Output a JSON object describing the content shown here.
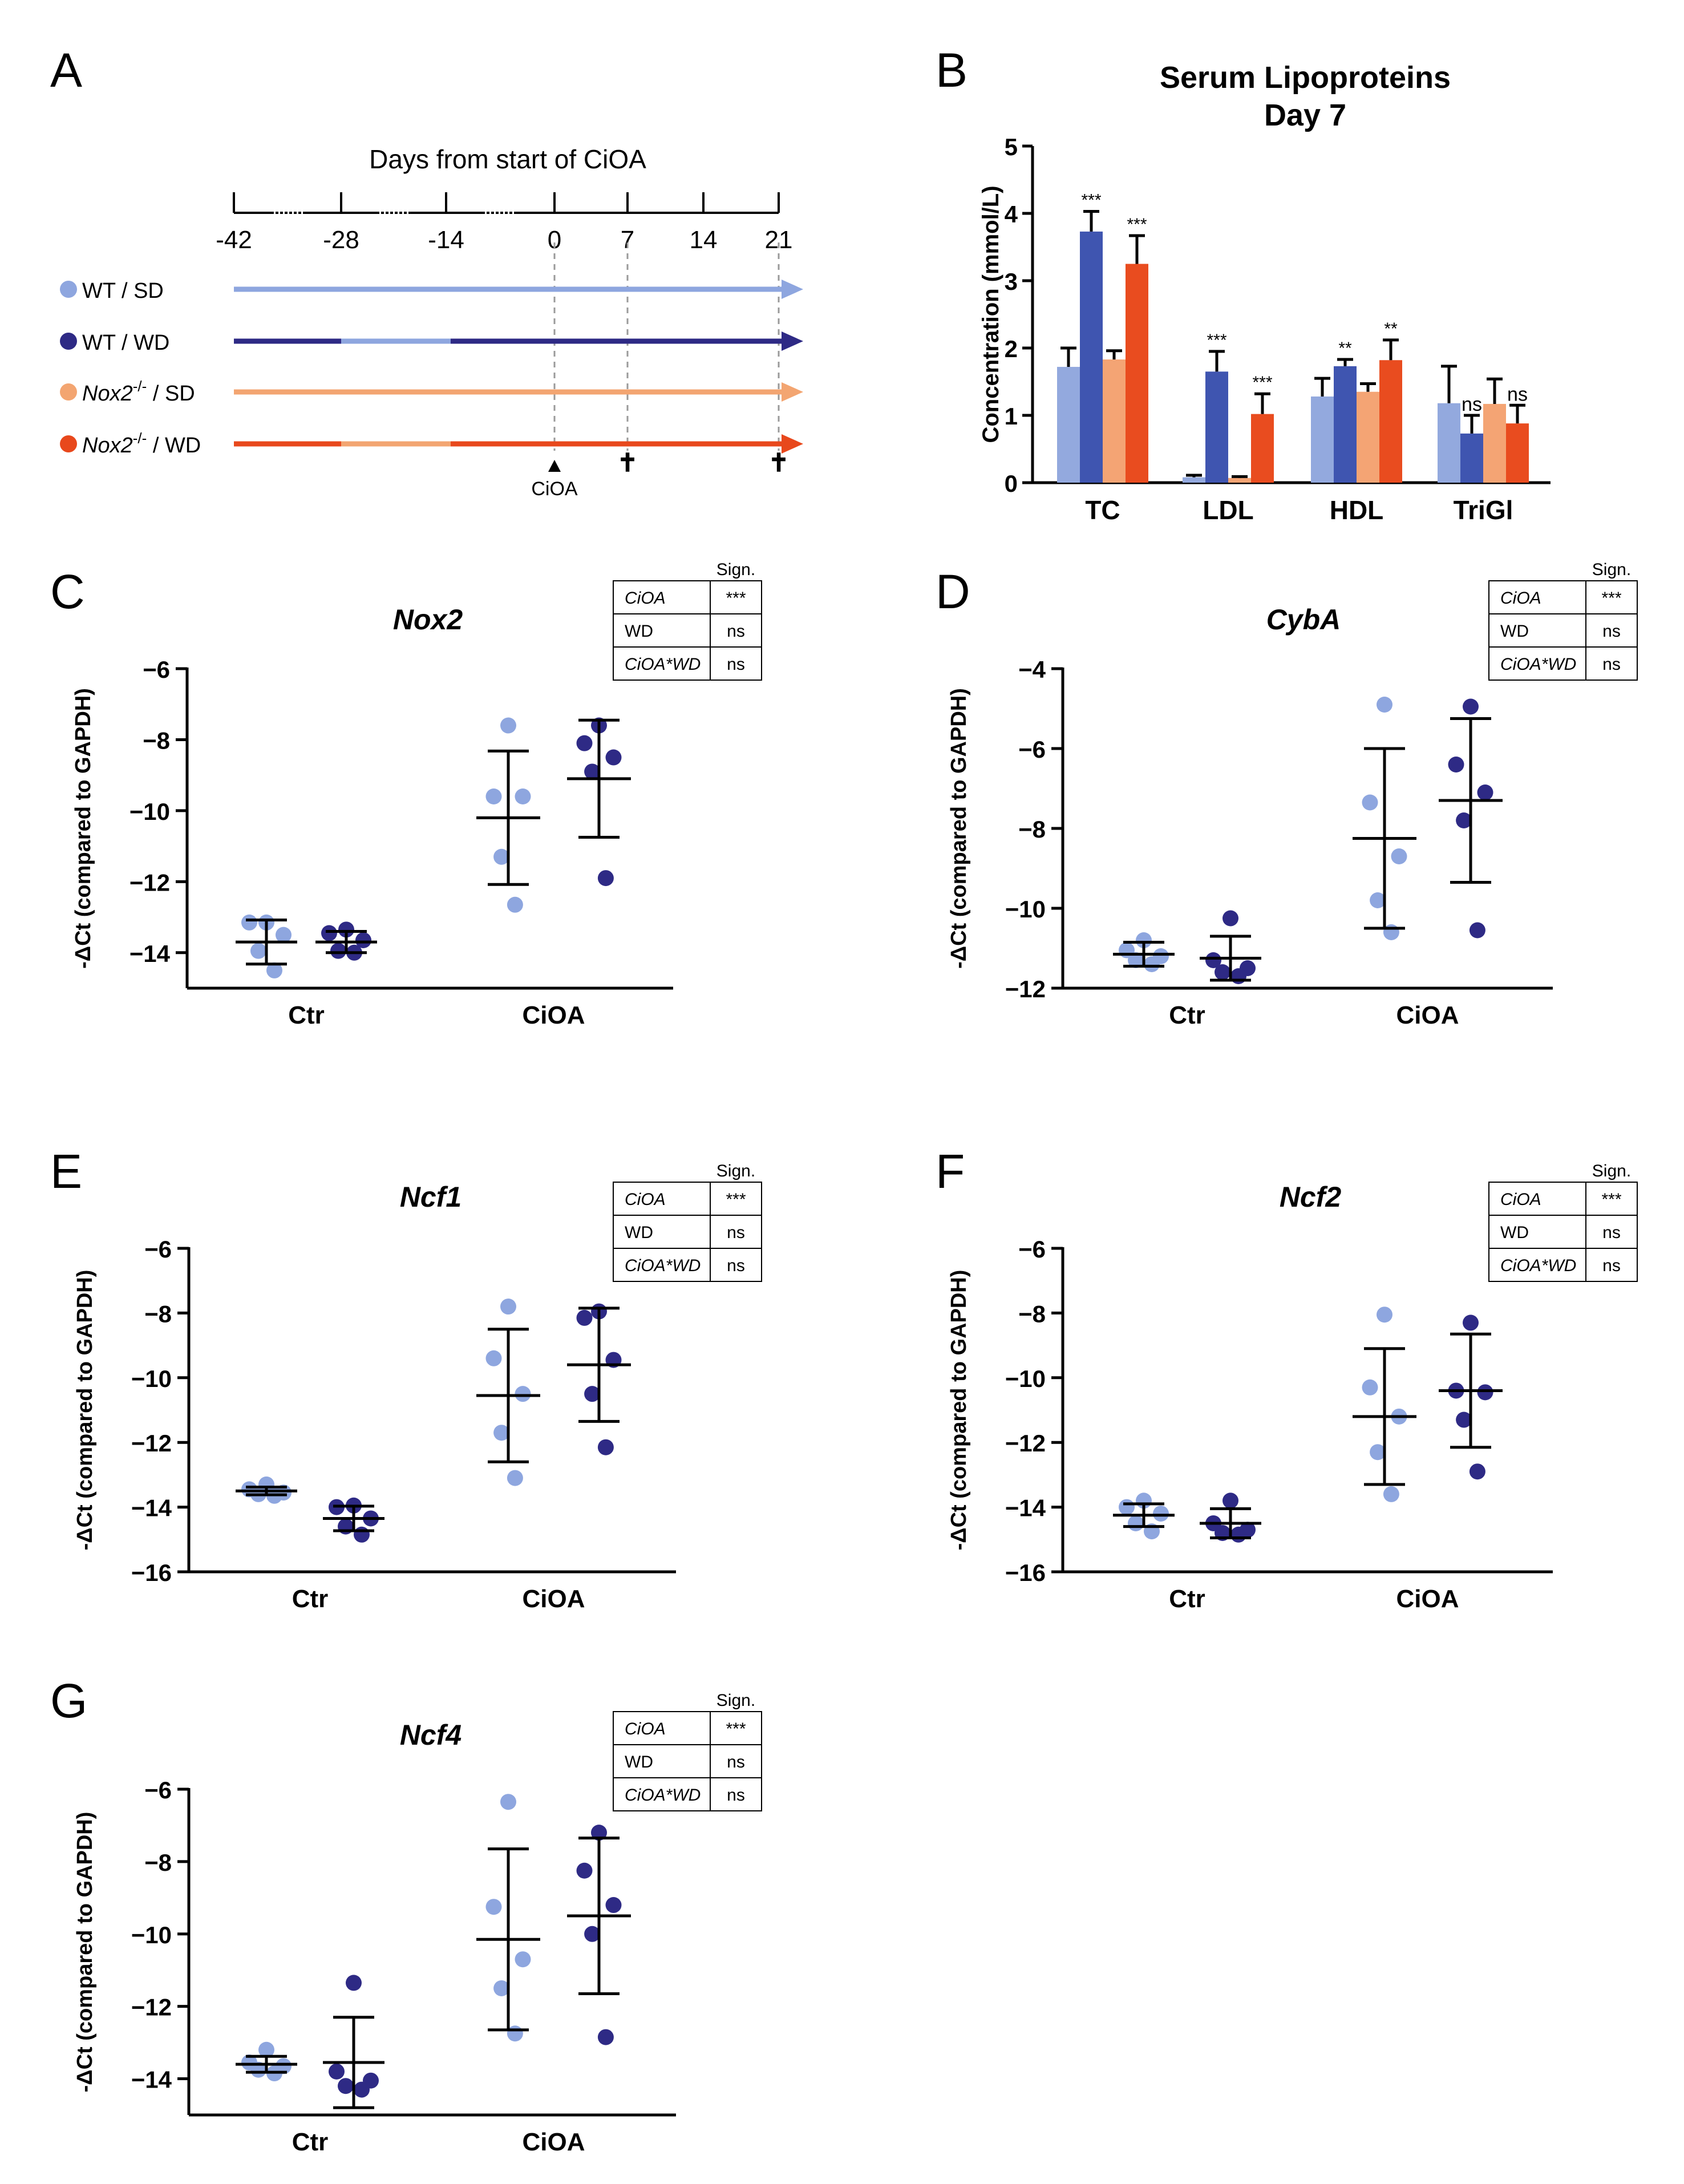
{
  "colors": {
    "wt_sd": "#8ea6df",
    "wt_wd": "#2e2a85",
    "nox_sd": "#f3a571",
    "nox_wd": "#e8481c",
    "bar_wt_sd": "#93a9de",
    "bar_wt_wd": "#3f55b0",
    "bar_nox_sd": "#f4a474",
    "bar_nox_wd": "#e94c1f",
    "axis": "#000000"
  },
  "panel_a": {
    "label": "A",
    "title": "Days from start of CiOA",
    "ticks": [
      "-42",
      "-28",
      "-14",
      "0",
      "7",
      "14",
      "21"
    ],
    "groups": [
      {
        "label": "WT / SD",
        "genotype": "",
        "sup": "",
        "diet": ""
      },
      {
        "label": "WT / WD",
        "genotype": "",
        "sup": "",
        "diet": ""
      },
      {
        "label": "",
        "genotype": "Nox2",
        "sup": "-/-",
        "diet": " / SD"
      },
      {
        "label": "",
        "genotype": "Nox2",
        "sup": "-/-",
        "diet": " / WD"
      }
    ],
    "ciao_marker": "CiOA",
    "endpoint_marker": "✝"
  },
  "chart_data": [
    {
      "panel": "B",
      "type": "bar",
      "title": "Serum Lipoproteins",
      "subtitle": "Day 7",
      "xlabel": "",
      "ylabel": "Concentration (mmol/L)",
      "ylim": [
        0,
        5
      ],
      "yticks": [
        "0",
        "1",
        "2",
        "3",
        "4",
        "5"
      ],
      "categories": [
        "TC",
        "LDL",
        "HDL",
        "TriGl"
      ],
      "series": [
        {
          "name": "WT / SD",
          "values": [
            1.72,
            0.08,
            1.28,
            1.18
          ],
          "err": [
            0.28,
            0.03,
            0.27,
            0.55
          ],
          "sig": [
            "",
            "",
            "",
            ""
          ]
        },
        {
          "name": "WT / WD",
          "values": [
            3.73,
            1.65,
            1.73,
            0.73
          ],
          "err": [
            0.3,
            0.3,
            0.1,
            0.27
          ],
          "sig": [
            "***",
            "***",
            "**",
            "ns"
          ]
        },
        {
          "name": "Nox2-/- / SD",
          "values": [
            1.83,
            0.07,
            1.35,
            1.17
          ],
          "err": [
            0.13,
            0.02,
            0.12,
            0.37
          ],
          "sig": [
            "",
            "",
            "",
            ""
          ]
        },
        {
          "name": "Nox2-/- / WD",
          "values": [
            3.25,
            1.02,
            1.82,
            0.88
          ],
          "err": [
            0.42,
            0.3,
            0.3,
            0.27
          ],
          "sig": [
            "***",
            "***",
            "**",
            "ns"
          ]
        }
      ]
    },
    {
      "panel": "C",
      "type": "scatter",
      "title": "Nox2",
      "ylabel": "-ΔCt (compared to GAPDH)",
      "ylim": [
        -15,
        -6
      ],
      "yticks": [
        "-6",
        "-8",
        "-10",
        "-12",
        "-14"
      ],
      "categories": [
        "Ctr",
        "CiOA"
      ],
      "series": [
        {
          "name": "Ctr WT",
          "points": [
            -13.15,
            -13.15,
            -13.5,
            -13.95,
            -14.5
          ],
          "mean": -13.7,
          "sd": 0.62
        },
        {
          "name": "Ctr Nox2-/-",
          "points": [
            -13.35,
            -13.45,
            -13.65,
            -13.95,
            -14.0
          ],
          "mean": -13.7,
          "sd": 0.3
        },
        {
          "name": "CiOA WT",
          "points": [
            -7.6,
            -9.6,
            -9.6,
            -11.3,
            -12.65
          ],
          "mean": -10.2,
          "sd": 1.88
        },
        {
          "name": "CiOA Nox2-/-",
          "points": [
            -7.6,
            -8.1,
            -8.5,
            -8.9,
            -11.9
          ],
          "mean": -9.1,
          "sd": 1.65
        }
      ],
      "sign_table": {
        "header": "Sign.",
        "rows": [
          [
            "CiOA",
            "***"
          ],
          [
            "WD",
            "ns"
          ],
          [
            "CiOA*WD",
            "ns"
          ]
        ]
      }
    },
    {
      "panel": "D",
      "type": "scatter",
      "title": "CybA",
      "ylabel": "-ΔCt (compared to GAPDH)",
      "ylim": [
        -12,
        -4
      ],
      "yticks": [
        "-4",
        "-6",
        "-8",
        "-10",
        "-12"
      ],
      "categories": [
        "Ctr",
        "CiOA"
      ],
      "series": [
        {
          "name": "Ctr WT",
          "points": [
            -10.8,
            -11.05,
            -11.2,
            -11.3,
            -11.4
          ],
          "mean": -11.15,
          "sd": 0.3
        },
        {
          "name": "Ctr Nox2-/-",
          "points": [
            -10.25,
            -11.3,
            -11.5,
            -11.6,
            -11.7
          ],
          "mean": -11.25,
          "sd": 0.55
        },
        {
          "name": "CiOA WT",
          "points": [
            -4.9,
            -7.35,
            -8.7,
            -9.8,
            -10.6
          ],
          "mean": -8.25,
          "sd": 2.25
        },
        {
          "name": "CiOA Nox2-/-",
          "points": [
            -4.95,
            -6.4,
            -7.1,
            -7.8,
            -10.55
          ],
          "mean": -7.3,
          "sd": 2.05
        }
      ],
      "sign_table": {
        "header": "Sign.",
        "rows": [
          [
            "CiOA",
            "***"
          ],
          [
            "WD",
            "ns"
          ],
          [
            "CiOA*WD",
            "ns"
          ]
        ]
      }
    },
    {
      "panel": "E",
      "type": "scatter",
      "title": "Ncf1",
      "ylabel": "-ΔCt (compared to GAPDH)",
      "ylim": [
        -16,
        -6
      ],
      "yticks": [
        "-6",
        "-8",
        "-10",
        "-12",
        "-14",
        "-16"
      ],
      "categories": [
        "Ctr",
        "CiOA"
      ],
      "series": [
        {
          "name": "Ctr WT",
          "points": [
            -13.3,
            -13.45,
            -13.55,
            -13.6,
            -13.65
          ],
          "mean": -13.5,
          "sd": 0.12
        },
        {
          "name": "Ctr Nox2-/-",
          "points": [
            -13.95,
            -14.0,
            -14.35,
            -14.6,
            -14.85
          ],
          "mean": -14.35,
          "sd": 0.38
        },
        {
          "name": "CiOA WT",
          "points": [
            -7.8,
            -9.4,
            -10.5,
            -11.7,
            -13.1
          ],
          "mean": -10.55,
          "sd": 2.05
        },
        {
          "name": "CiOA Nox2-/-",
          "points": [
            -7.95,
            -8.15,
            -9.45,
            -10.5,
            -12.15
          ],
          "mean": -9.6,
          "sd": 1.75
        }
      ],
      "sign_table": {
        "header": "Sign.",
        "rows": [
          [
            "CiOA",
            "***"
          ],
          [
            "WD",
            "ns"
          ],
          [
            "CiOA*WD",
            "ns"
          ]
        ]
      }
    },
    {
      "panel": "F",
      "type": "scatter",
      "title": "Ncf2",
      "ylabel": "-ΔCt (compared to GAPDH)",
      "ylim": [
        -16,
        -6
      ],
      "yticks": [
        "-6",
        "-8",
        "-10",
        "-12",
        "-14",
        "-16"
      ],
      "categories": [
        "Ctr",
        "CiOA"
      ],
      "series": [
        {
          "name": "Ctr WT",
          "points": [
            -13.8,
            -14.0,
            -14.2,
            -14.5,
            -14.75
          ],
          "mean": -14.25,
          "sd": 0.35
        },
        {
          "name": "Ctr Nox2-/-",
          "points": [
            -13.8,
            -14.5,
            -14.7,
            -14.8,
            -14.85
          ],
          "mean": -14.5,
          "sd": 0.45
        },
        {
          "name": "CiOA WT",
          "points": [
            -8.05,
            -10.3,
            -11.2,
            -12.3,
            -13.6
          ],
          "mean": -11.2,
          "sd": 2.1
        },
        {
          "name": "CiOA Nox2-/-",
          "points": [
            -8.3,
            -10.4,
            -10.45,
            -11.3,
            -12.9
          ],
          "mean": -10.4,
          "sd": 1.75
        }
      ],
      "sign_table": {
        "header": "Sign.",
        "rows": [
          [
            "CiOA",
            "***"
          ],
          [
            "WD",
            "ns"
          ],
          [
            "CiOA*WD",
            "ns"
          ]
        ]
      }
    },
    {
      "panel": "G",
      "type": "scatter",
      "title": "Ncf4",
      "ylabel": "-ΔCt (compared to GAPDH)",
      "ylim": [
        -15,
        -6
      ],
      "yticks": [
        "-6",
        "-8",
        "-10",
        "-12",
        "-14"
      ],
      "categories": [
        "Ctr",
        "CiOA"
      ],
      "series": [
        {
          "name": "Ctr WT",
          "points": [
            -13.2,
            -13.55,
            -13.65,
            -13.75,
            -13.85
          ],
          "mean": -13.6,
          "sd": 0.22
        },
        {
          "name": "Ctr Nox2-/-",
          "points": [
            -11.35,
            -13.8,
            -14.05,
            -14.2,
            -14.3
          ],
          "mean": -13.55,
          "sd": 1.25
        },
        {
          "name": "CiOA WT",
          "points": [
            -6.35,
            -9.25,
            -10.7,
            -11.5,
            -12.75
          ],
          "mean": -10.15,
          "sd": 2.5
        },
        {
          "name": "CiOA Nox2-/-",
          "points": [
            -7.2,
            -8.25,
            -9.2,
            -10.0,
            -12.85
          ],
          "mean": -9.5,
          "sd": 2.15
        }
      ],
      "sign_table": {
        "header": "Sign.",
        "rows": [
          [
            "CiOA",
            "***"
          ],
          [
            "WD",
            "ns"
          ],
          [
            "CiOA*WD",
            "ns"
          ]
        ]
      }
    }
  ]
}
